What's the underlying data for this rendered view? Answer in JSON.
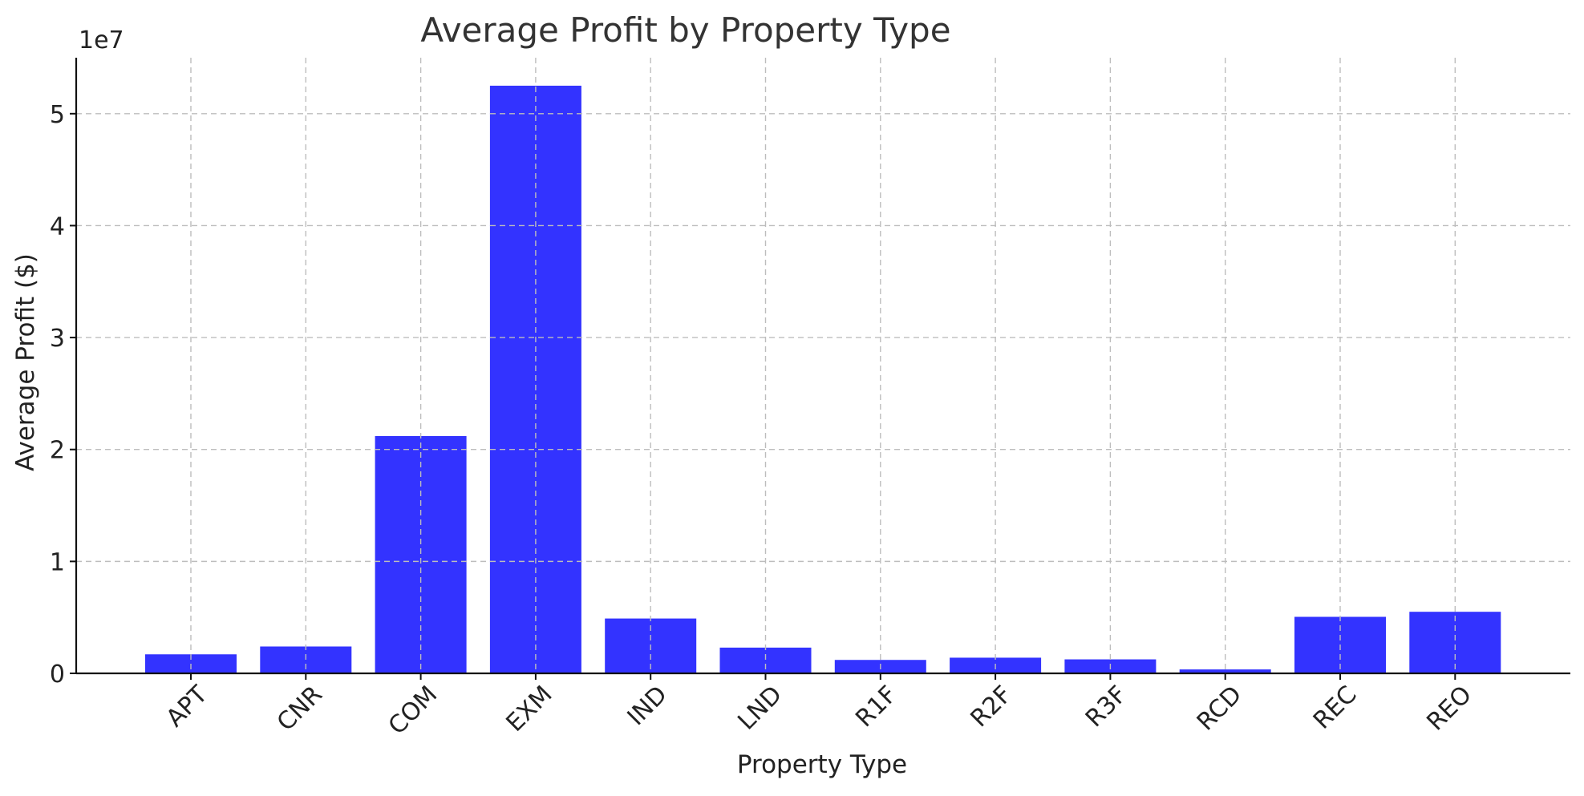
{
  "chart_data": {
    "type": "bar",
    "title": "Average Profit by Property Type",
    "xlabel": "Property Type",
    "ylabel": "Average Profit ($)",
    "y_offset_text": "1e7",
    "categories": [
      "APT",
      "CNR",
      "COM",
      "EXM",
      "IND",
      "LND",
      "R1F",
      "R2F",
      "R3F",
      "RCD",
      "REC",
      "REO"
    ],
    "values": [
      1700000,
      2400000,
      21200000,
      52500000,
      4900000,
      2300000,
      1200000,
      1400000,
      1250000,
      350000,
      5050000,
      5500000
    ],
    "ylim": [
      0,
      55000000
    ],
    "yticks": [
      0,
      10000000,
      20000000,
      30000000,
      40000000,
      50000000
    ],
    "ytick_labels": [
      "0",
      "1",
      "2",
      "3",
      "4",
      "5"
    ],
    "grid": true,
    "bar_color": "#3333ff",
    "grid_color": "#bdbdbd",
    "axis_color": "#111111",
    "text_color": "#222222"
  }
}
